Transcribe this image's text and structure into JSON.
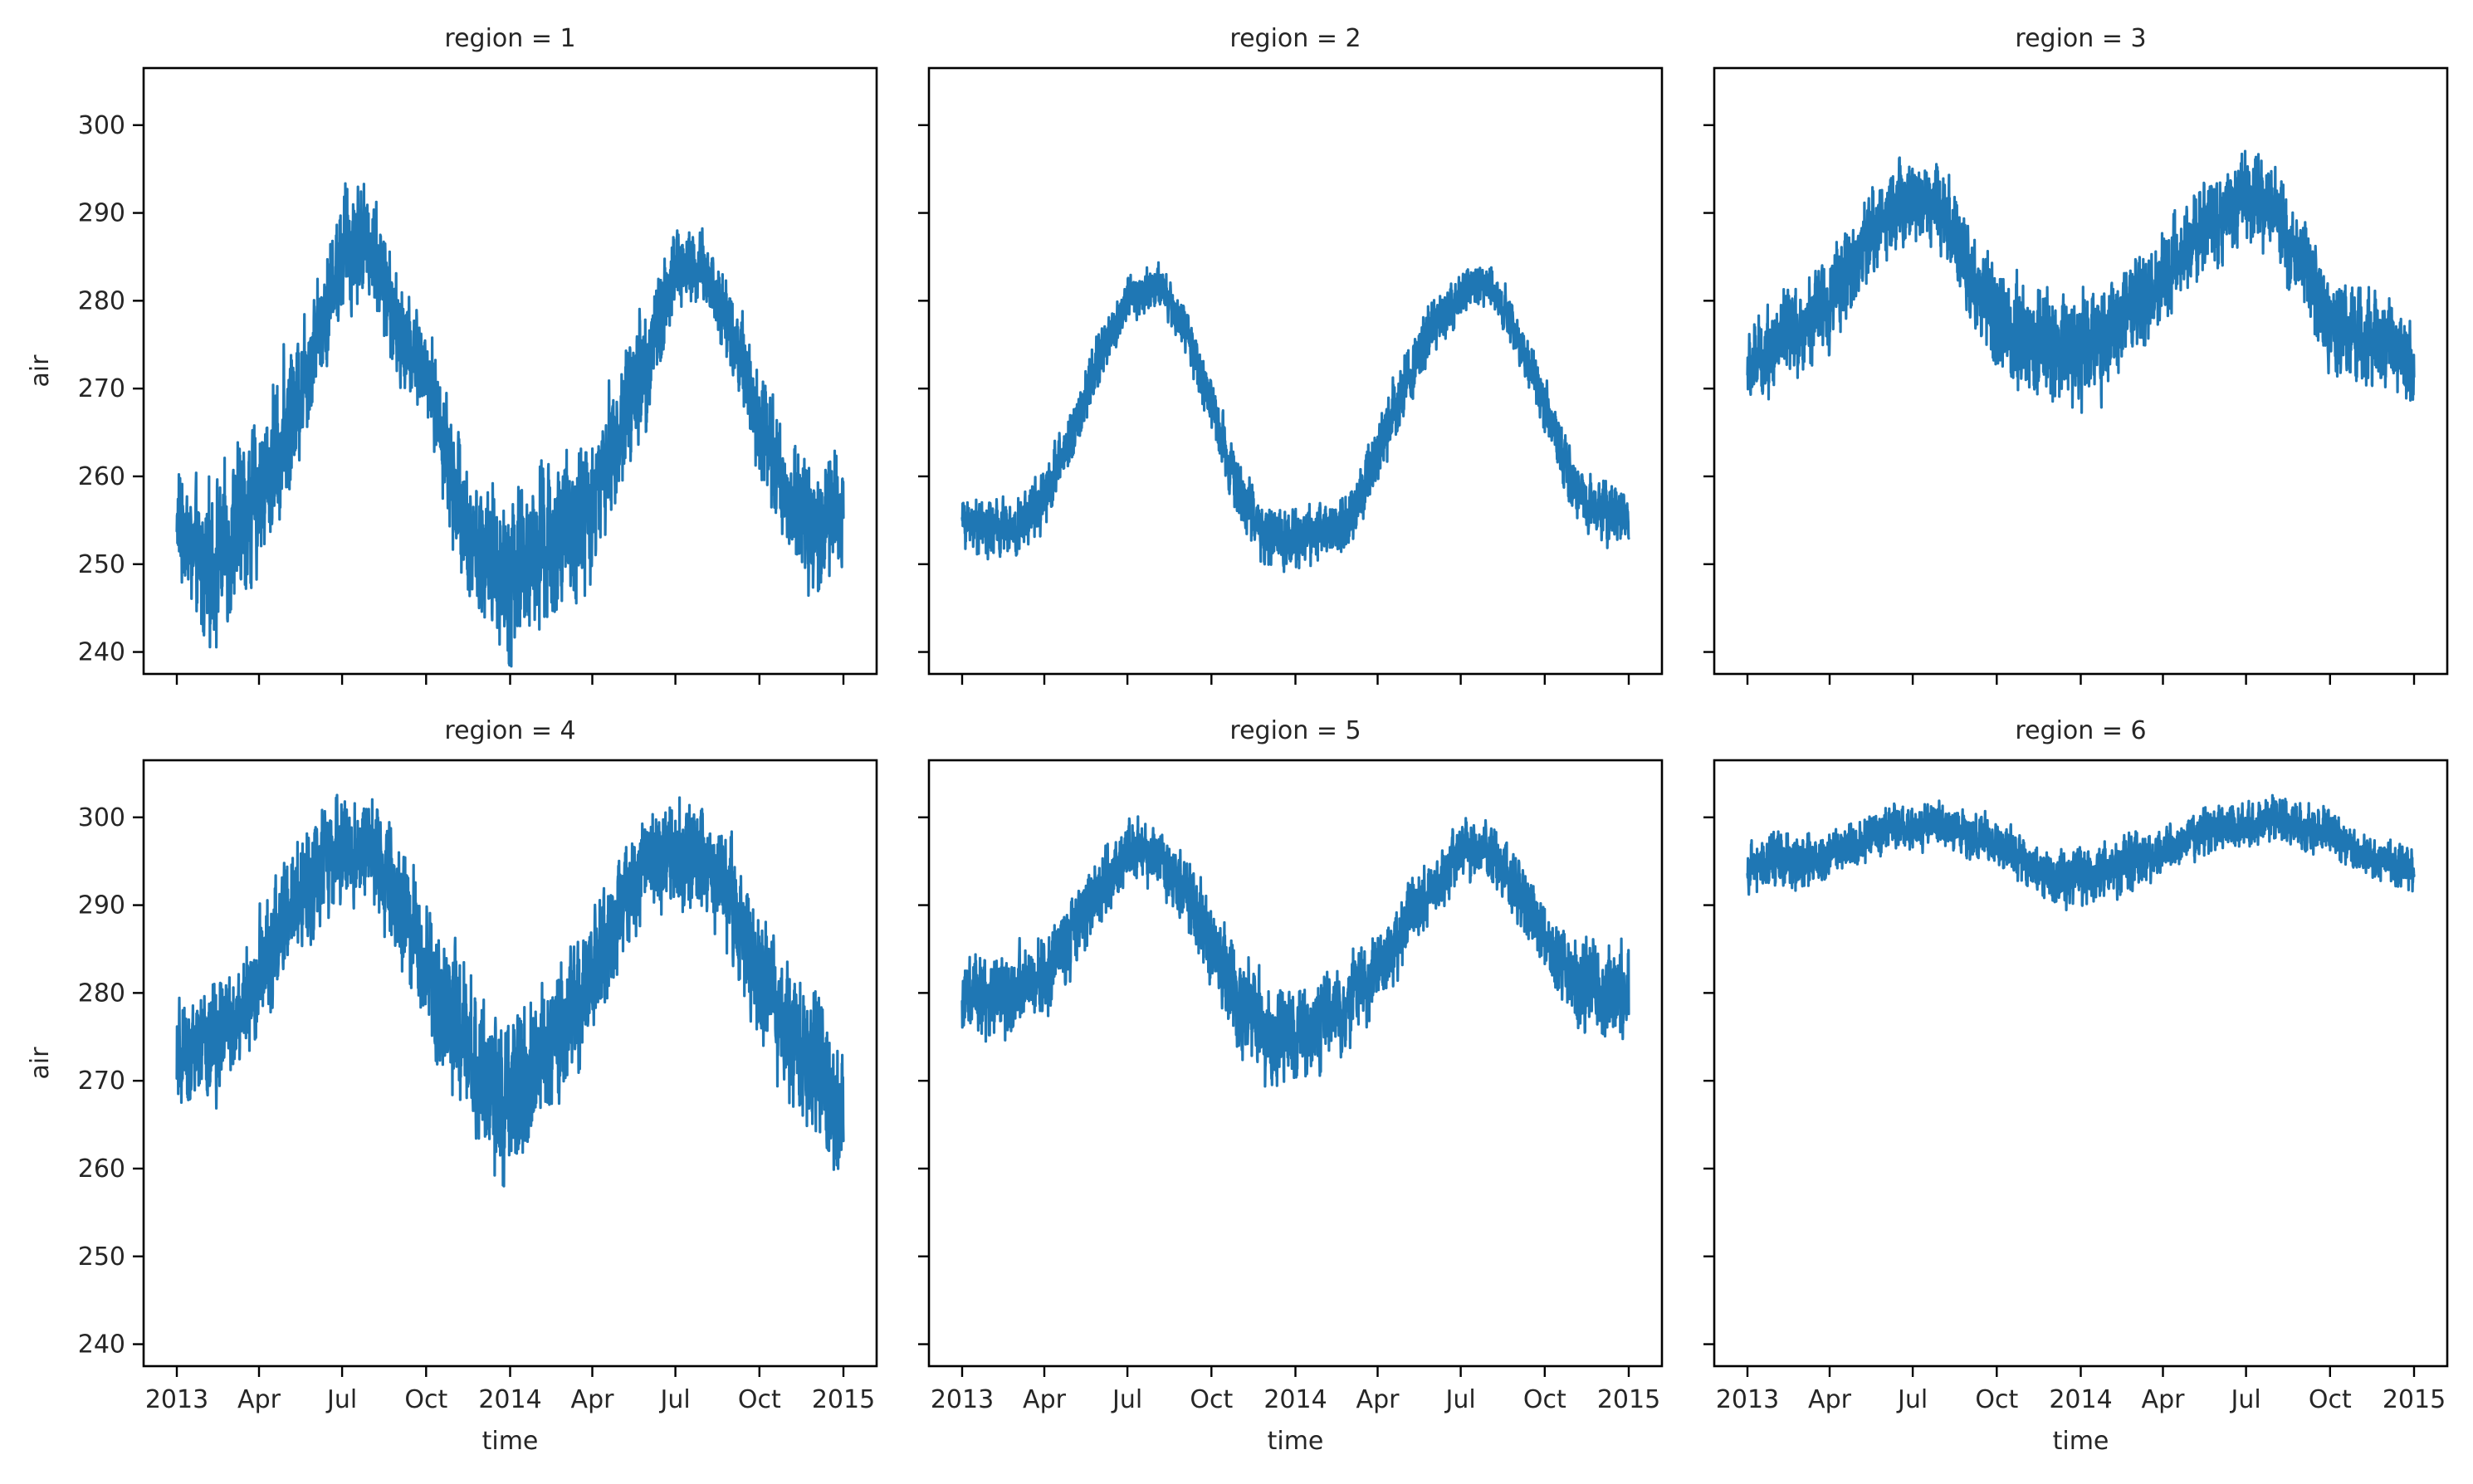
{
  "colors": {
    "series": "#1f77b4",
    "axes": "#000000",
    "text": "#262626",
    "background": "#ffffff"
  },
  "chart_data": {
    "type": "line",
    "layout": "facet grid 2 rows x 3 columns, shared x and y axes",
    "xlabel": "time",
    "ylabel": "air",
    "xlim": [
      "2013-01-01",
      "2015-01-01"
    ],
    "ylim": [
      237.5,
      306.5
    ],
    "grid": false,
    "legend": "none",
    "x_ticks": [
      {
        "date": "2013-01-01",
        "label": "2013"
      },
      {
        "date": "2013-04-01",
        "label": "Apr"
      },
      {
        "date": "2013-07-01",
        "label": "Jul"
      },
      {
        "date": "2013-10-01",
        "label": "Oct"
      },
      {
        "date": "2014-01-01",
        "label": "2014"
      },
      {
        "date": "2014-04-01",
        "label": "Apr"
      },
      {
        "date": "2014-07-01",
        "label": "Jul"
      },
      {
        "date": "2014-10-01",
        "label": "Oct"
      },
      {
        "date": "2015-01-01",
        "label": "2015"
      }
    ],
    "y_ticks": [
      240,
      250,
      260,
      270,
      280,
      290,
      300
    ],
    "x": [
      "2013-01-01",
      "2013-02-01",
      "2013-03-01",
      "2013-04-01",
      "2013-05-01",
      "2013-06-01",
      "2013-07-01",
      "2013-08-01",
      "2013-09-01",
      "2013-10-01",
      "2013-11-01",
      "2013-12-01",
      "2014-01-01",
      "2014-02-01",
      "2014-03-01",
      "2014-04-01",
      "2014-05-01",
      "2014-06-01",
      "2014-07-01",
      "2014-08-01",
      "2014-09-01",
      "2014-10-01",
      "2014-11-01",
      "2014-12-01",
      "2015-01-01"
    ],
    "panels": [
      {
        "title": "region = 1",
        "values": [
          255,
          249,
          253,
          258,
          266,
          276,
          286,
          287,
          276,
          272,
          259,
          250,
          249,
          251,
          253,
          257,
          266,
          274,
          284,
          283,
          277,
          266,
          258,
          253,
          257
        ],
        "spread": [
          7,
          10,
          11,
          10,
          10,
          9,
          8,
          8,
          7,
          6,
          9,
          10,
          12,
          12,
          11,
          10,
          9,
          8,
          6,
          6,
          6,
          7,
          8,
          9,
          8
        ]
      },
      {
        "title": "region = 2",
        "values": [
          255,
          254,
          254,
          258,
          265,
          274,
          280,
          282,
          277,
          268,
          258,
          253,
          253,
          254,
          255,
          263,
          271,
          277,
          281,
          282,
          276,
          268,
          259,
          256,
          256
        ],
        "spread": [
          3,
          4,
          4,
          4,
          4,
          4,
          3,
          3,
          3,
          4,
          4,
          4,
          4,
          4,
          4,
          4,
          4,
          4,
          3,
          3,
          3,
          4,
          4,
          4,
          4
        ]
      },
      {
        "title": "region = 3",
        "values": [
          272,
          275,
          277,
          280,
          285,
          290,
          292,
          291,
          283,
          277,
          276,
          275,
          275,
          276,
          279,
          282,
          287,
          290,
          292,
          290,
          284,
          277,
          276,
          275,
          272
        ],
        "spread": [
          5,
          6,
          6,
          6,
          6,
          6,
          6,
          6,
          6,
          7,
          8,
          8,
          8,
          7,
          7,
          6,
          6,
          6,
          6,
          6,
          7,
          7,
          7,
          6,
          6
        ]
      },
      {
        "title": "region = 4",
        "values": [
          272,
          274,
          276,
          282,
          289,
          294,
          296,
          296,
          290,
          283,
          276,
          270,
          268,
          272,
          276,
          283,
          290,
          295,
          296,
          295,
          290,
          282,
          275,
          272,
          266
        ],
        "spread": [
          7,
          8,
          8,
          8,
          8,
          8,
          7,
          7,
          8,
          9,
          10,
          11,
          11,
          10,
          9,
          8,
          8,
          7,
          7,
          7,
          8,
          9,
          10,
          10,
          9
        ]
      },
      {
        "title": "region = 5",
        "values": [
          279,
          280,
          280,
          282,
          287,
          292,
          296,
          296,
          292,
          285,
          279,
          276,
          275,
          277,
          279,
          283,
          288,
          292,
          296,
          296,
          292,
          286,
          282,
          280,
          280
        ],
        "spread": [
          5,
          6,
          6,
          5,
          5,
          5,
          4,
          4,
          5,
          6,
          7,
          7,
          7,
          6,
          6,
          5,
          5,
          4,
          4,
          4,
          4,
          5,
          6,
          6,
          6
        ]
      },
      {
        "title": "region = 6",
        "values": [
          294,
          295,
          295,
          296,
          297,
          299,
          299,
          299,
          298,
          297,
          295,
          293,
          293,
          294,
          295,
          296,
          298,
          299,
          299,
          300,
          299,
          298,
          296,
          295,
          294
        ],
        "spread": [
          3,
          4,
          4,
          3,
          3,
          3,
          3,
          3,
          3,
          3,
          3,
          4,
          4,
          4,
          4,
          3,
          3,
          3,
          3,
          3,
          3,
          3,
          3,
          3,
          3
        ]
      }
    ]
  }
}
